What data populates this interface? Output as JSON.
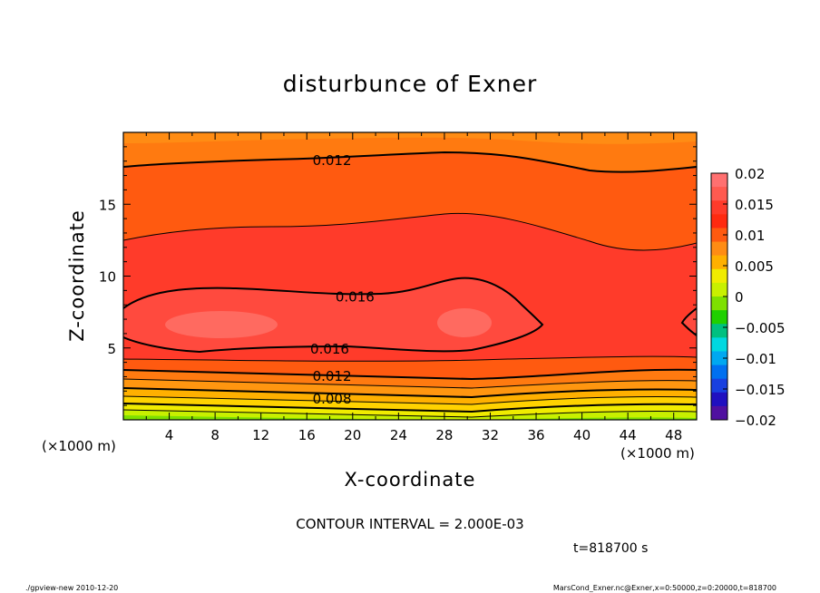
{
  "chart_data": {
    "type": "contour",
    "title": "disturbunce of Exner",
    "xlabel": "X-coordinate",
    "ylabel": "Z-coordinate",
    "x_unit": "(×1000 m)",
    "y_unit": "(×1000 m)",
    "xlim": [
      0,
      50
    ],
    "ylim": [
      0,
      20
    ],
    "x_ticks": [
      4,
      8,
      12,
      16,
      20,
      24,
      28,
      32,
      36,
      40,
      44,
      48
    ],
    "y_ticks": [
      5,
      10,
      15
    ],
    "contour_interval_text": "CONTOUR INTERVAL = 2.000E-03",
    "time_text": "t=818700 s",
    "colorbar": {
      "ticks": [
        "0.02",
        "0.015",
        "0.01",
        "0.005",
        "0",
        "−0.005",
        "−0.01",
        "−0.015",
        "−0.02"
      ],
      "range": [
        -0.02,
        0.02
      ]
    },
    "contour_labels": [
      {
        "text": "0.012",
        "x": 18.2,
        "z": 18.1
      },
      {
        "text": "0.016",
        "x": 20.2,
        "z": 8.6
      },
      {
        "text": "0.016",
        "x": 18.0,
        "z": 5.0
      },
      {
        "text": "0.012",
        "x": 18.2,
        "z": 3.1
      },
      {
        "text": "0.008",
        "x": 18.2,
        "z": 1.5
      }
    ],
    "description_levels": [
      0.002,
      0.004,
      0.006,
      0.008,
      0.01,
      0.012,
      0.014,
      0.016,
      0.018
    ]
  },
  "footer": {
    "left": "./gpview-new   2010-12-20",
    "right": "MarsCond_Exner.nc@Exner,x=0:50000,z=0:20000,t=818700"
  }
}
